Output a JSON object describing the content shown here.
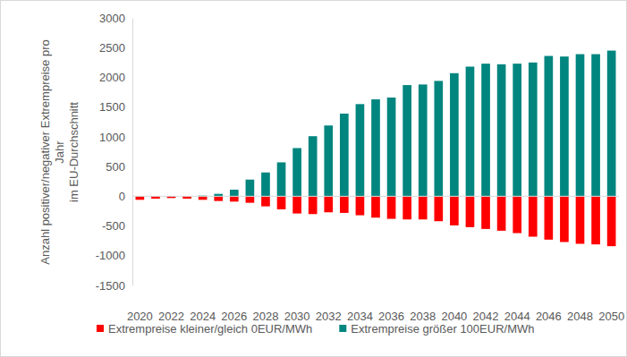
{
  "chart_data": {
    "type": "bar",
    "ylabel": [
      "Anzahl positiver/negativer Extrempreise pro",
      "Jahr",
      "im EU-Durchschnitt"
    ],
    "categories": [
      "2020",
      null,
      "2022",
      null,
      "2024",
      null,
      "2026",
      null,
      "2028",
      null,
      "2030",
      null,
      "2032",
      null,
      "2034",
      null,
      "2036",
      null,
      "2038",
      null,
      "2040",
      null,
      "2042",
      null,
      "2044",
      null,
      "2046",
      null,
      "2048",
      null,
      "2050"
    ],
    "series": [
      {
        "name": "Extrempreise kleiner/gleich 0EUR/MWh",
        "color": "#ff0000",
        "values": [
          -60,
          -40,
          -30,
          -40,
          -60,
          -80,
          -90,
          -110,
          -170,
          -220,
          -290,
          -300,
          -270,
          -280,
          -320,
          -360,
          -380,
          -390,
          -390,
          -420,
          -490,
          -520,
          -550,
          -580,
          -620,
          -680,
          -730,
          -770,
          -800,
          -810,
          -840
        ]
      },
      {
        "name": "Extrempreise größer 100EUR/MWh",
        "color": "#00857f",
        "values": [
          0,
          0,
          0,
          0,
          10,
          40,
          110,
          280,
          400,
          570,
          810,
          1010,
          1190,
          1390,
          1550,
          1630,
          1660,
          1870,
          1880,
          1940,
          2070,
          2180,
          2230,
          2220,
          2230,
          2250,
          2360,
          2350,
          2390,
          2390,
          2450
        ]
      }
    ],
    "ylim": [
      -1500,
      3000
    ],
    "yticks": [
      -1500,
      -1000,
      -500,
      0,
      500,
      1000,
      1500,
      2000,
      2500,
      3000
    ],
    "grid": false,
    "legend": "bottom"
  }
}
